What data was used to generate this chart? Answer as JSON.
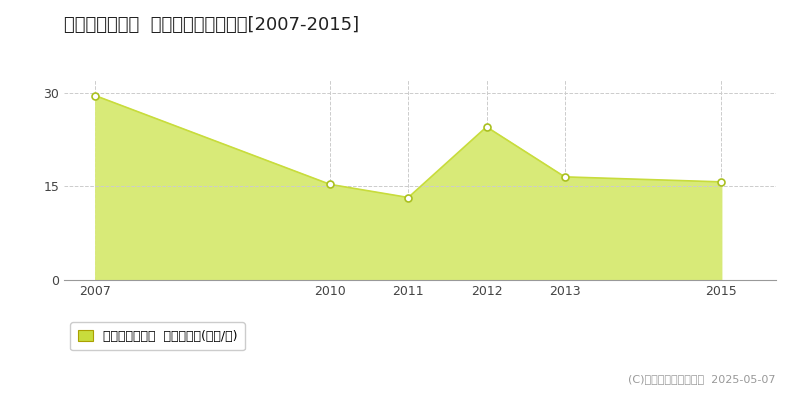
{
  "title": "白山市源兵島町  マンション価格推移[2007-2015]",
  "years": [
    2007,
    2010,
    2011,
    2012,
    2013,
    2015
  ],
  "values": [
    29.5,
    15.3,
    13.2,
    24.5,
    16.5,
    15.7
  ],
  "line_color": "#c8dc3c",
  "fill_color": "#d8ea78",
  "marker_face_color": "#ffffff",
  "marker_edge_color": "#aac020",
  "bg_color": "#ffffff",
  "plot_bg_color": "#ffffff",
  "grid_color": "#cccccc",
  "yticks": [
    0,
    15,
    30
  ],
  "xticks": [
    2007,
    2010,
    2011,
    2012,
    2013,
    2015
  ],
  "ylim": [
    0,
    32
  ],
  "xlim": [
    2006.6,
    2015.7
  ],
  "legend_label": "マンション価格  平均坪単価(万円/坪)",
  "legend_color": "#c8dc3c",
  "copyright_text": "(C)土地価格ドットコム  2025-05-07",
  "title_fontsize": 13,
  "axis_fontsize": 9,
  "legend_fontsize": 9,
  "copyright_fontsize": 8
}
